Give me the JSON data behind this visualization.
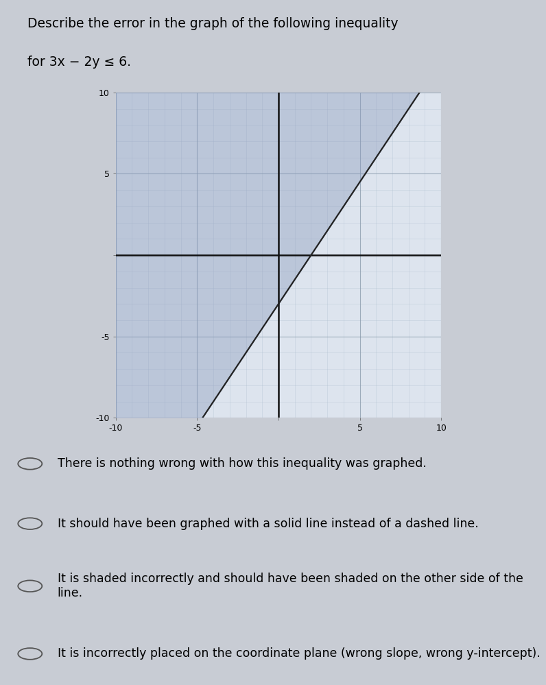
{
  "title_line1": "Describe the error in the graph of the following inequality",
  "title_line2": "for 3x − 2y ≤ 6.",
  "xlim": [
    -10,
    10
  ],
  "ylim": [
    -10,
    10
  ],
  "xtick_vals": [
    -10,
    -5,
    5,
    10
  ],
  "ytick_vals": [
    5,
    10,
    -5,
    -10
  ],
  "slope": 1.5,
  "yintercept": -3,
  "shade_color": "#8899bb",
  "shade_alpha": 0.4,
  "line_color": "#222222",
  "line_style": "-",
  "line_width": 1.6,
  "grid_minor_color": "#aabbcc",
  "grid_major_color": "#8899aa",
  "grid_alpha": 0.5,
  "axis_color": "#111111",
  "bg_color": "#dde4ee",
  "page_bg": "#c8ccd4",
  "answer_options": [
    "There is nothing wrong with how this inequality was graphed.",
    "It should have been graphed with a solid line instead of a dashed line.",
    "It is shaded incorrectly and should have been shaded on the other side of the line.",
    "It is incorrectly placed on the coordinate plane (wrong slope, wrong y-intercept)."
  ],
  "font_size_title": 13.5,
  "font_size_options": 12.5,
  "font_size_ticks": 9
}
